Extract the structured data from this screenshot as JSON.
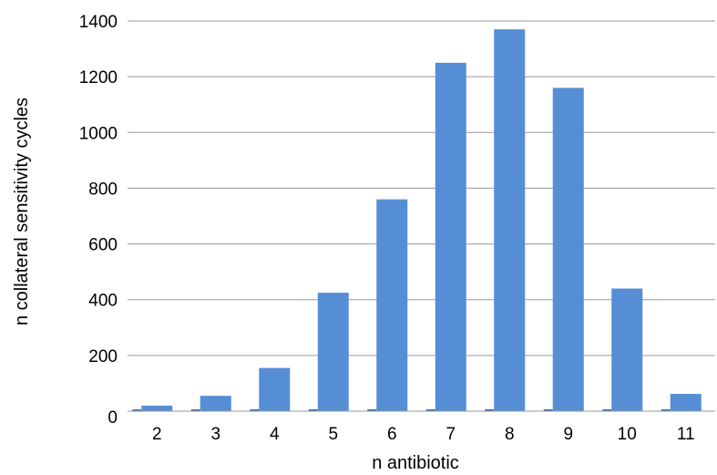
{
  "chart_data": {
    "type": "bar",
    "categories": [
      "2",
      "3",
      "4",
      "5",
      "6",
      "7",
      "8",
      "9",
      "10",
      "11"
    ],
    "values": [
      20,
      55,
      155,
      425,
      760,
      1250,
      1370,
      1160,
      440,
      62
    ],
    "xlabel": "n antibiotic",
    "ylabel": "n collateral sensitivity cycles",
    "ylim": [
      0,
      1400
    ],
    "yticks": [
      0,
      200,
      400,
      600,
      800,
      1000,
      1200,
      1400
    ],
    "grid": true,
    "legend": "none",
    "colors": {
      "bar": "#558ed5",
      "bar_edge": "#3d6fae"
    }
  }
}
